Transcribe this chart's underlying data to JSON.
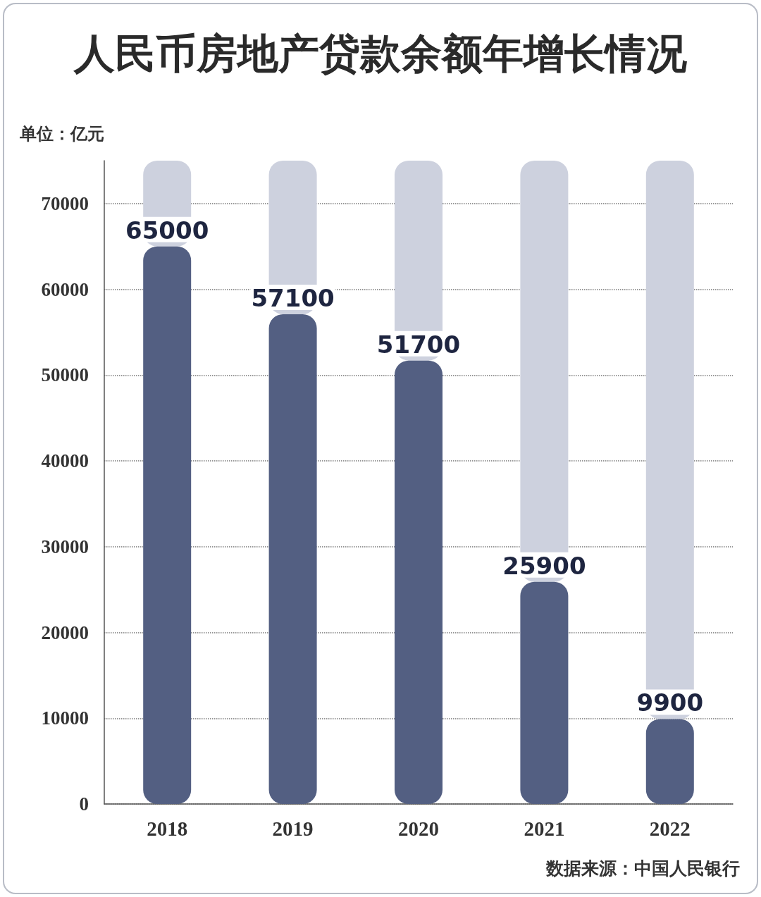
{
  "chart_data": {
    "type": "bar",
    "title": "人民币房地产贷款余额年增长情况",
    "ylabel": "单位：亿元",
    "categories": [
      "2018",
      "2019",
      "2020",
      "2021",
      "2022"
    ],
    "stacked": true,
    "series": [
      {
        "color": "#535f82",
        "values": [
          65000,
          57100,
          51700,
          25900,
          9900
        ],
        "value_labels": [
          "65000",
          "57100",
          "51700",
          "25900",
          "9900"
        ]
      },
      {
        "color": "#cdd1de",
        "values": [
          10000,
          17900,
          23300,
          49100,
          65100
        ]
      }
    ],
    "ylim": [
      0,
      75000
    ],
    "yticks": [
      0,
      10000,
      20000,
      30000,
      40000,
      50000,
      60000,
      70000
    ],
    "grid": "y",
    "annotations": [
      "数据来源：中国人民银行"
    ]
  }
}
